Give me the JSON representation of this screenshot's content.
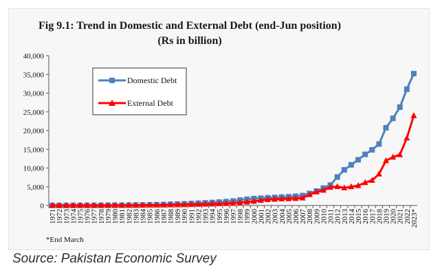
{
  "chart_data": {
    "type": "line",
    "title": "Fig 9.1: Trend in Domestic and External Debt (end-Jun position)",
    "subtitle": "(Rs in billion)",
    "ylim": [
      0,
      40000
    ],
    "yticks": [
      0,
      5000,
      10000,
      15000,
      20000,
      25000,
      30000,
      35000,
      40000
    ],
    "ytick_labels": [
      "0",
      "5,000",
      "10,000",
      "15,000",
      "20,000",
      "25,000",
      "30,000",
      "35,000",
      "40,000"
    ],
    "grid": false,
    "legend_position": "top-left",
    "categories": [
      "1971",
      "1972",
      "1973",
      "1974",
      "1975",
      "1976",
      "1977",
      "1978",
      "1979",
      "1980",
      "1981",
      "1982",
      "1983",
      "1984",
      "1985",
      "1986",
      "1987",
      "1988",
      "1989",
      "1990",
      "1991",
      "1992",
      "1993",
      "1994",
      "1995",
      "1996",
      "1997",
      "1998",
      "1999",
      "2000",
      "2001",
      "2002",
      "2003",
      "2004",
      "2005",
      "2006",
      "2007",
      "2008",
      "2009",
      "2010",
      "2011",
      "2012",
      "2013",
      "2014",
      "2015",
      "2016",
      "2017",
      "2018",
      "2019",
      "2020",
      "2021",
      "2022",
      "2023*"
    ],
    "series": [
      {
        "name": "Domestic Debt",
        "color": "#4f81bd",
        "marker": "square",
        "values": [
          10,
          12,
          15,
          18,
          22,
          27,
          33,
          40,
          50,
          60,
          70,
          90,
          110,
          140,
          170,
          210,
          260,
          320,
          380,
          440,
          520,
          600,
          700,
          800,
          900,
          1050,
          1200,
          1450,
          1650,
          1850,
          1950,
          2050,
          2150,
          2250,
          2350,
          2450,
          2650,
          3200,
          3850,
          4650,
          5450,
          7600,
          9500,
          10850,
          12200,
          13650,
          14850,
          16400,
          20750,
          23250,
          26250,
          31050,
          35200
        ]
      },
      {
        "name": "External Debt",
        "color": "#ff0000",
        "marker": "triangle",
        "values": [
          5,
          6,
          8,
          10,
          12,
          15,
          18,
          22,
          27,
          32,
          38,
          45,
          55,
          70,
          85,
          100,
          120,
          150,
          180,
          210,
          260,
          300,
          350,
          400,
          450,
          500,
          600,
          750,
          900,
          1100,
          1350,
          1550,
          1650,
          1750,
          1800,
          1850,
          2000,
          2900,
          3600,
          4050,
          4850,
          5050,
          4700,
          5000,
          5300,
          6100,
          6700,
          8400,
          11950,
          12900,
          13550,
          18000,
          24000
        ]
      }
    ],
    "footnote": "*End March"
  },
  "source": "Source: Pakistan Economic Survey"
}
